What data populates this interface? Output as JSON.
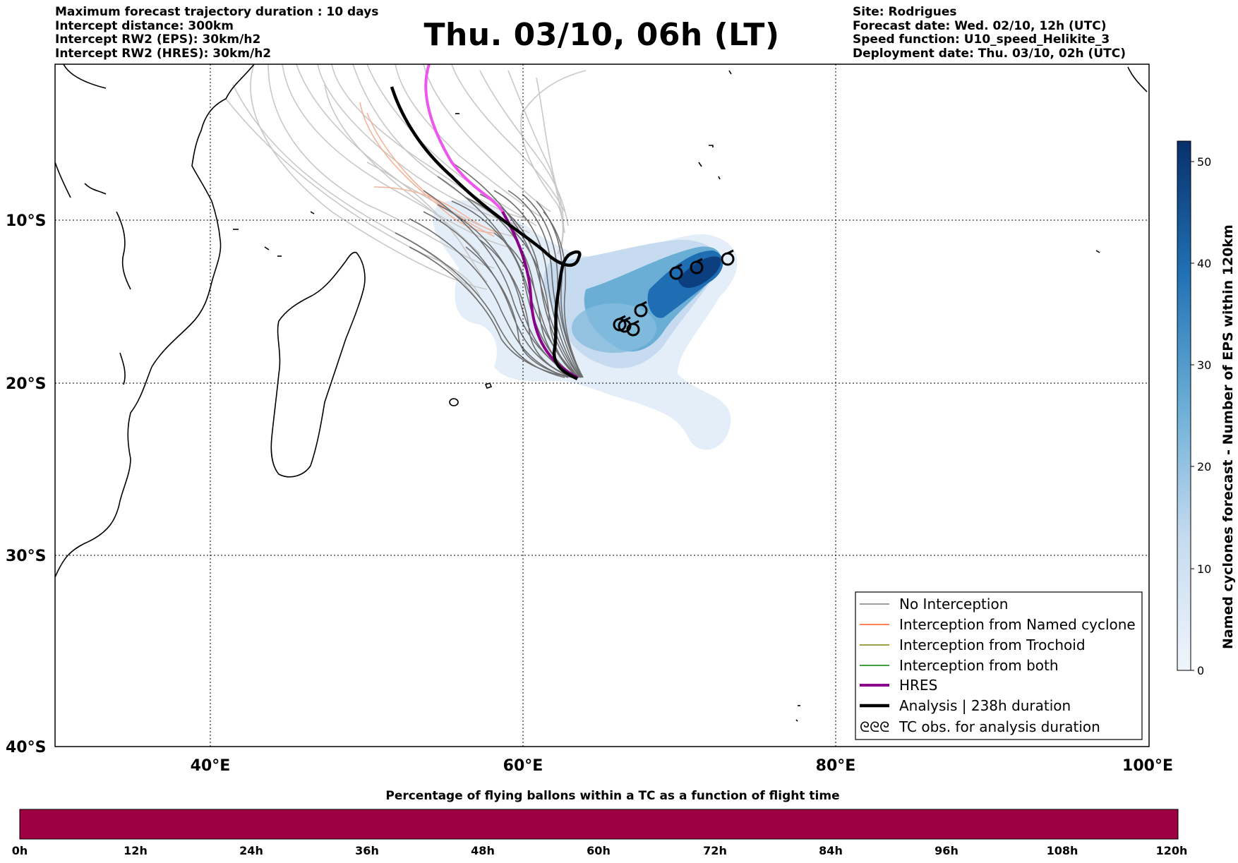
{
  "header": {
    "left_lines": [
      "Maximum forecast trajectory duration : 10 days",
      "Intercept distance: 300km",
      "Intercept RW2 (EPS):  30km/h2",
      "Intercept RW2 (HRES): 30km/h2"
    ],
    "title": "Thu. 03/10, 06h (LT)",
    "right_lines": [
      "Site: Rodrigues",
      "Forecast date: Wed. 02/10, 12h (UTC)",
      "Speed function: U10_speed_Helikite_3",
      "Deployment date: Thu. 03/10, 02h (UTC)"
    ]
  },
  "map": {
    "lat_labels": [
      "10°S",
      "20°S",
      "30°S",
      "40°S"
    ],
    "lon_labels": [
      "40°E",
      "60°E",
      "80°E",
      "100°E"
    ],
    "colors": {
      "no_interception": "#7f7f7f",
      "named_cyclone": "#ff5a1f",
      "trochoid": "#808000",
      "both": "#008000",
      "hres": "#8b008b",
      "hres_highlight": "#ee55ee",
      "analysis": "#000000",
      "faded_tracks": "#c8c8c8",
      "faded_named": "#f4b49a"
    }
  },
  "legend": {
    "items": [
      "No Interception",
      "Interception from Named cyclone",
      "Interception from Trochoid",
      "Interception from both",
      "HRES",
      "Analysis | 238h duration",
      "TC obs. for analysis duration"
    ],
    "tc_symbol": "ᘓᘓᘓ"
  },
  "colorbar": {
    "title": "Named cyclones forecast - Number of EPS within 120km",
    "ticks": [
      "0",
      "10",
      "20",
      "30",
      "40",
      "50"
    ],
    "range": [
      0,
      52
    ],
    "color_low": "#e8f0fa",
    "color_high": "#08306b"
  },
  "percentage_bar": {
    "title": "Percentage of flying ballons within a TC as a function of flight time",
    "ticks": [
      "0h",
      "12h",
      "24h",
      "36h",
      "48h",
      "60h",
      "72h",
      "84h",
      "96h",
      "108h",
      "120h"
    ],
    "color": "#9e0142"
  }
}
